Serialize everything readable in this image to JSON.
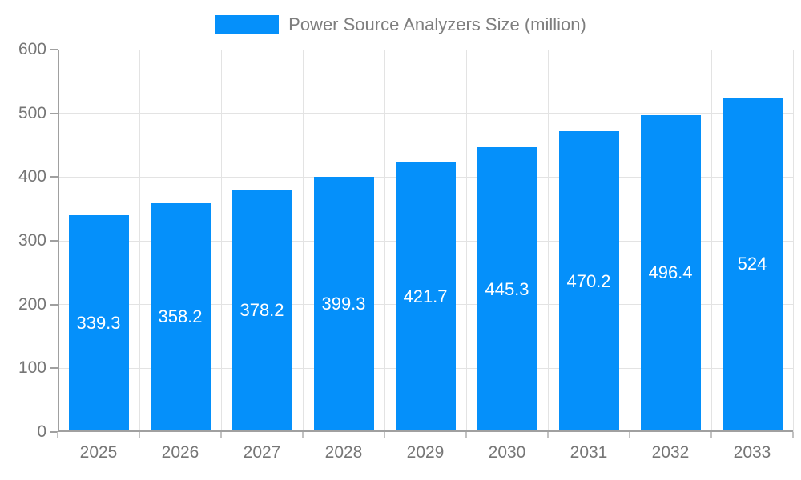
{
  "chart_data": {
    "type": "bar",
    "title": "",
    "legend_label": "Power Source Analyzers Size (million)",
    "legend_position": "top",
    "categories": [
      "2025",
      "2026",
      "2027",
      "2028",
      "2029",
      "2030",
      "2031",
      "2032",
      "2033"
    ],
    "values": [
      339.3,
      358.2,
      378.2,
      399.3,
      421.7,
      445.3,
      470.2,
      496.4,
      524
    ],
    "value_labels": [
      "339.3",
      "358.2",
      "378.2",
      "399.3",
      "421.7",
      "445.3",
      "470.2",
      "496.4",
      "524"
    ],
    "xlabel": "",
    "ylabel": "",
    "ylim": [
      0,
      600
    ],
    "yticks": [
      0,
      100,
      200,
      300,
      400,
      500,
      600
    ],
    "grid": true,
    "colors": {
      "bar": "#0590FA",
      "bar_label": "#FFFFFF",
      "axis_text": "#767676",
      "legend_text": "#7E7E7E",
      "grid_line": "#E3E3E3",
      "axis_line": "#A0A0A0",
      "tick": "#C2C2C2",
      "background": "#FFFFFF"
    }
  }
}
